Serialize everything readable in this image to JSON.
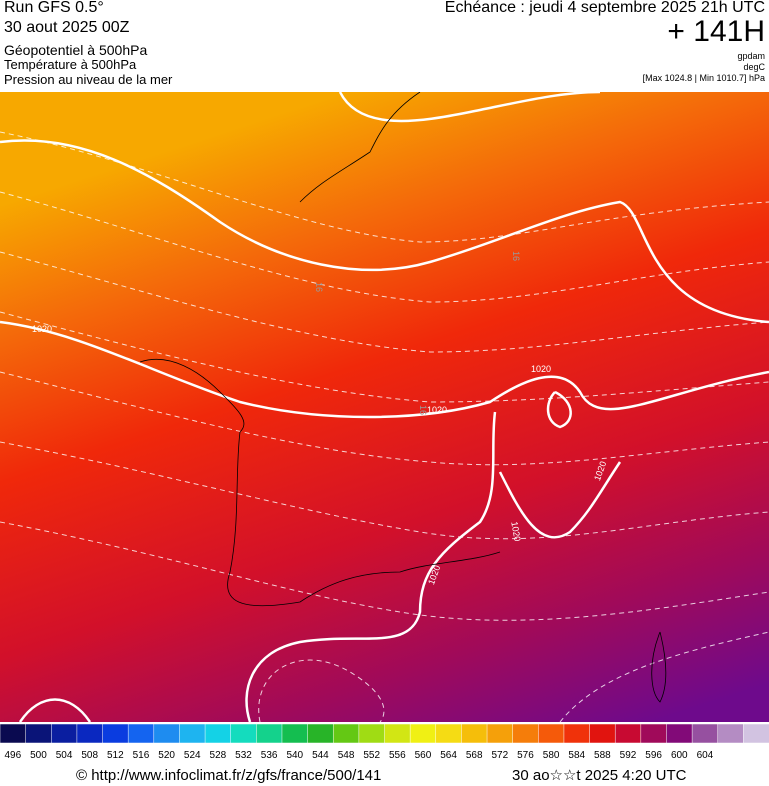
{
  "header": {
    "run": "Run GFS 0.5°",
    "run_date": "30 aout 2025 00Z",
    "field1": "Géopotentiel à 500hPa",
    "field2": "Température à 500hPa",
    "field3": "Pression au niveau de la mer",
    "valid": "Echéance : jeudi 4 septembre 2025 21h UTC",
    "lead": "+ 141H",
    "unit1": "gpdam",
    "unit2": "degC",
    "pressure_range": "[Max 1024.8 | Min 1010.7] hPa"
  },
  "map": {
    "contour_labels": [
      "1020",
      "1020",
      "1020",
      "1020",
      "1020",
      "1020",
      "16",
      "16",
      "16"
    ]
  },
  "colorbar": {
    "labels": [
      496,
      500,
      504,
      508,
      512,
      516,
      520,
      524,
      528,
      532,
      536,
      540,
      544,
      548,
      552,
      556,
      560,
      564,
      568,
      572,
      576,
      580,
      584,
      588,
      592,
      596,
      600,
      604
    ],
    "colors": [
      "#0a0a50",
      "#0a1478",
      "#0a1ea0",
      "#0a28c0",
      "#0a3ce0",
      "#1464f0",
      "#1e8cf0",
      "#1eb4f0",
      "#14d2e6",
      "#14dcbe",
      "#14d28c",
      "#14be50",
      "#28b428",
      "#64c814",
      "#a0dc14",
      "#d2e614",
      "#f0f014",
      "#f5dc14",
      "#f5be0a",
      "#f5a00a",
      "#f57d0a",
      "#f55a0a",
      "#f0320a",
      "#e1140f",
      "#c80a32",
      "#a00a5a",
      "#820a78",
      "#9650a0",
      "#b48cc3",
      "#d2c3e1"
    ]
  },
  "footer": {
    "url": "© http://www.infoclimat.fr/z/gfs/france/500/141",
    "generated": "30 ao☆☆t 2025  4:20 UTC"
  }
}
